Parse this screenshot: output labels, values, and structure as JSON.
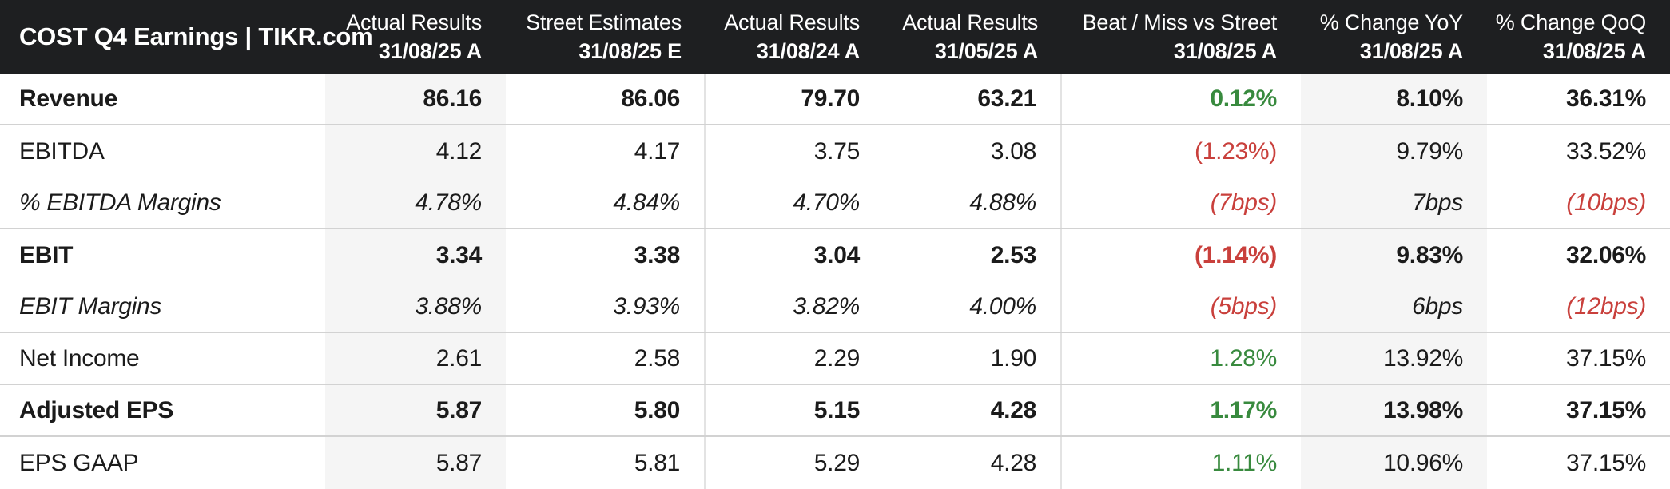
{
  "header": {
    "title": "COST Q4 Earnings | TIKR.com"
  },
  "colors": {
    "header_bg": "#1e1f21",
    "header_text": "#ffffff",
    "body_text": "#1b1b1b",
    "green": "#388a3e",
    "red": "#c9403c",
    "shade": "#f5f5f5",
    "separator": "#d2d2d2",
    "divider": "#e3e3e3"
  },
  "chart_data": {
    "type": "table",
    "title": "COST Q4 Earnings | TIKR.com",
    "columns": [
      {
        "label": "Actual Results",
        "date": "31/08/25 A",
        "shaded": true,
        "divider_after": false
      },
      {
        "label": "Street Estimates",
        "date": "31/08/25 E",
        "shaded": false,
        "divider_after": true
      },
      {
        "label": "Actual Results",
        "date": "31/08/24 A",
        "shaded": false,
        "divider_after": false
      },
      {
        "label": "Actual Results",
        "date": "31/05/25 A",
        "shaded": false,
        "divider_after": true
      },
      {
        "label": "Beat / Miss vs Street",
        "date": "31/08/25 A",
        "shaded": false,
        "divider_after": false
      },
      {
        "label": "% Change YoY",
        "date": "31/08/25 A",
        "shaded": true,
        "divider_after": false
      },
      {
        "label": "% Change QoQ",
        "date": "31/08/25 A",
        "shaded": false,
        "divider_after": false
      }
    ],
    "rows": [
      {
        "label": "Revenue",
        "emphasis": "bold",
        "separator_below": true,
        "values": [
          "86.16",
          "86.06",
          "79.70",
          "63.21",
          "0.12%",
          "8.10%",
          "36.31%"
        ],
        "value_styles": [
          "",
          "",
          "",
          "",
          "green",
          "",
          ""
        ]
      },
      {
        "label": "EBITDA",
        "emphasis": "",
        "separator_below": false,
        "values": [
          "4.12",
          "4.17",
          "3.75",
          "3.08",
          "(1.23%)",
          "9.79%",
          "33.52%"
        ],
        "value_styles": [
          "",
          "",
          "",
          "",
          "red",
          "",
          ""
        ]
      },
      {
        "label": "% EBITDA Margins",
        "emphasis": "italic",
        "separator_below": true,
        "values": [
          "4.78%",
          "4.84%",
          "4.70%",
          "4.88%",
          "(7bps)",
          "7bps",
          "(10bps)"
        ],
        "value_styles": [
          "",
          "",
          "",
          "",
          "red",
          "",
          "red"
        ]
      },
      {
        "label": "EBIT",
        "emphasis": "bold",
        "separator_below": false,
        "values": [
          "3.34",
          "3.38",
          "3.04",
          "2.53",
          "(1.14%)",
          "9.83%",
          "32.06%"
        ],
        "value_styles": [
          "",
          "",
          "",
          "",
          "red",
          "",
          ""
        ]
      },
      {
        "label": "EBIT Margins",
        "emphasis": "italic",
        "separator_below": true,
        "values": [
          "3.88%",
          "3.93%",
          "3.82%",
          "4.00%",
          "(5bps)",
          "6bps",
          "(12bps)"
        ],
        "value_styles": [
          "",
          "",
          "",
          "",
          "red",
          "",
          "red"
        ]
      },
      {
        "label": "Net Income",
        "emphasis": "",
        "separator_below": true,
        "values": [
          "2.61",
          "2.58",
          "2.29",
          "1.90",
          "1.28%",
          "13.92%",
          "37.15%"
        ],
        "value_styles": [
          "",
          "",
          "",
          "",
          "green",
          "",
          ""
        ]
      },
      {
        "label": "Adjusted EPS",
        "emphasis": "bold",
        "separator_below": true,
        "values": [
          "5.87",
          "5.80",
          "5.15",
          "4.28",
          "1.17%",
          "13.98%",
          "37.15%"
        ],
        "value_styles": [
          "",
          "",
          "",
          "",
          "green",
          "",
          ""
        ]
      },
      {
        "label": "EPS GAAP",
        "emphasis": "",
        "separator_below": false,
        "values": [
          "5.87",
          "5.81",
          "5.29",
          "4.28",
          "1.11%",
          "10.96%",
          "37.15%"
        ],
        "value_styles": [
          "",
          "",
          "",
          "",
          "green",
          "",
          ""
        ]
      }
    ]
  }
}
